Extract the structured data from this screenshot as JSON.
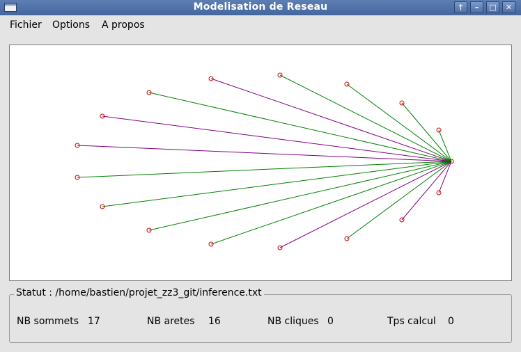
{
  "window": {
    "title": "Modelisation de Reseau",
    "controls": [
      {
        "name": "keep-above-button",
        "glyph": "🡑"
      },
      {
        "name": "minimize-button",
        "glyph": "–"
      },
      {
        "name": "maximize-button",
        "glyph": "□"
      },
      {
        "name": "close-button",
        "glyph": "✕"
      }
    ]
  },
  "menu": [
    "Fichier",
    "Options",
    "A propos"
  ],
  "graph": {
    "node_color": "#cc0000",
    "edge_colors": {
      "green": "#008000",
      "purple": "#800080"
    },
    "edges": [
      "purple",
      "purple",
      "purple",
      "green",
      "green",
      "green",
      "green",
      "green",
      "green",
      "green",
      "green",
      "green",
      "purple",
      "purple",
      "purple",
      "purple"
    ]
  },
  "status": {
    "label": "Statut : /home/bastien/projet_zz3_git/inference.txt",
    "nb_sommets_label": "NB sommets",
    "nb_sommets": "17",
    "nb_aretes_label": "NB aretes",
    "nb_aretes": "16",
    "nb_cliques_label": "NB cliques",
    "nb_cliques": "0",
    "tps_calcul_label": "Tps calcul",
    "tps_calcul": "0"
  }
}
